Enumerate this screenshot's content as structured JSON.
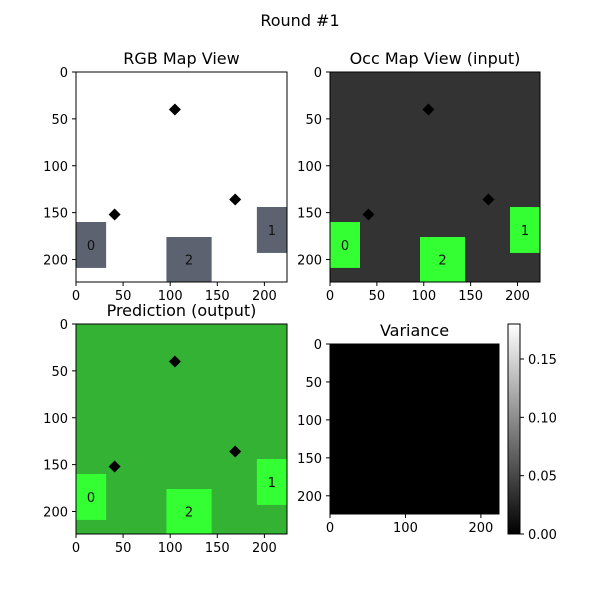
{
  "figure": {
    "suptitle": "Round #1",
    "background": "#ffffff"
  },
  "chart_data": [
    {
      "type": "heatmap",
      "title": "RGB Map View",
      "xlim": [
        0,
        224
      ],
      "ylim": [
        224,
        0
      ],
      "xticks": [
        0,
        50,
        100,
        150,
        200
      ],
      "yticks": [
        0,
        50,
        100,
        150,
        200
      ],
      "background": "#ffffff",
      "block_color": "#5c6270",
      "markers": [
        {
          "x": 105,
          "y": 40
        },
        {
          "x": 41,
          "y": 152
        },
        {
          "x": 169,
          "y": 136
        }
      ],
      "blocks": [
        {
          "label": "0",
          "x0": 0,
          "x1": 32,
          "y0": 160,
          "y1": 209
        },
        {
          "label": "2",
          "x0": 96,
          "x1": 144,
          "y0": 176,
          "y1": 224
        },
        {
          "label": "1",
          "x0": 192,
          "x1": 224,
          "y0": 144,
          "y1": 193
        }
      ]
    },
    {
      "type": "heatmap",
      "title": "Occ Map View (input)",
      "xlim": [
        0,
        224
      ],
      "ylim": [
        224,
        0
      ],
      "xticks": [
        0,
        50,
        100,
        150,
        200
      ],
      "yticks": [
        0,
        50,
        100,
        150,
        200
      ],
      "background": "#333333",
      "block_color": "#33ff33",
      "markers": [
        {
          "x": 105,
          "y": 40
        },
        {
          "x": 41,
          "y": 152
        },
        {
          "x": 169,
          "y": 136
        }
      ],
      "blocks": [
        {
          "label": "0",
          "x0": 0,
          "x1": 32,
          "y0": 160,
          "y1": 209
        },
        {
          "label": "2",
          "x0": 96,
          "x1": 144,
          "y0": 176,
          "y1": 224
        },
        {
          "label": "1",
          "x0": 192,
          "x1": 224,
          "y0": 144,
          "y1": 193
        }
      ]
    },
    {
      "type": "heatmap",
      "title": "Prediction (output)",
      "xlim": [
        0,
        224
      ],
      "ylim": [
        224,
        0
      ],
      "xticks": [
        0,
        50,
        100,
        150,
        200
      ],
      "yticks": [
        0,
        50,
        100,
        150,
        200
      ],
      "background": "#33b233",
      "block_color": "#33ff33",
      "markers": [
        {
          "x": 105,
          "y": 40
        },
        {
          "x": 41,
          "y": 152
        },
        {
          "x": 169,
          "y": 136
        }
      ],
      "blocks": [
        {
          "label": "0",
          "x0": 0,
          "x1": 32,
          "y0": 160,
          "y1": 209
        },
        {
          "label": "2",
          "x0": 96,
          "x1": 144,
          "y0": 176,
          "y1": 224
        },
        {
          "label": "1",
          "x0": 192,
          "x1": 224,
          "y0": 144,
          "y1": 193
        }
      ]
    },
    {
      "type": "heatmap",
      "title": "Variance",
      "xlim": [
        0,
        224
      ],
      "ylim": [
        224,
        0
      ],
      "xticks": [
        0,
        100,
        200
      ],
      "yticks": [
        0,
        50,
        100,
        150,
        200
      ],
      "background": "#000000",
      "value": 0.0,
      "colorbar": {
        "range": [
          0,
          0.18
        ],
        "ticks": [
          0.0,
          0.05,
          0.1,
          0.15
        ],
        "tick_labels": [
          "0.00",
          "0.05",
          "0.10",
          "0.15"
        ],
        "colormap": "gray"
      }
    }
  ]
}
